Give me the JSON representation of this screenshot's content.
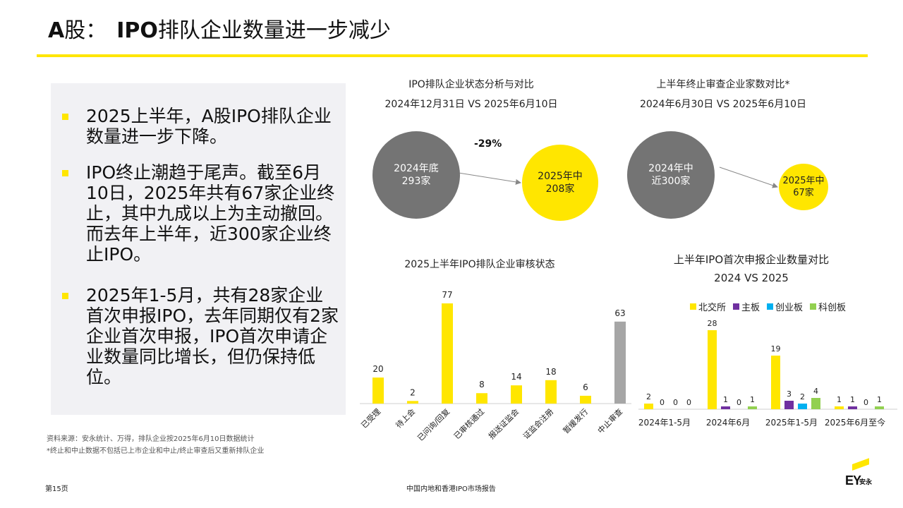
{
  "title": {
    "prefix": "A",
    "mid": "股：",
    "strong": "IPO",
    "rest": "排队企业数量进一步减少"
  },
  "bullets": [
    "2025上半年，A股IPO排队企业数量进一步下降。",
    "IPO终止潮趋于尾声。截至6月10日，2025年共有67家企业终止，其中九成以上为主动撤回。而去年上半年，近300家企业终止IPO。",
    "2025年1-5月，共有28家企业首次申报IPO，去年同期仅有2家企业首次申报，IPO首次申请企业数量同比增长，但仍保持低位。"
  ],
  "colors": {
    "yellow": "#ffe600",
    "gray": "#747474",
    "bar_gray": "#a6a6a6",
    "purple": "#7030a0",
    "blue": "#00b0f0",
    "green": "#92d050"
  },
  "panel1": {
    "title": "IPO排队企业状态分析与对比",
    "subtitle": "2024年12月31日 VS 2025年6月10日",
    "left_line1": "2024年底",
    "left_line2": "293家",
    "right_line1": "2025年中",
    "right_line2": "208家",
    "change": "-29%"
  },
  "panel2": {
    "title": "上半年终止审查企业家数对比*",
    "subtitle": "2024年6月30日 VS 2025年6月10日",
    "left_line1": "2024年中",
    "left_line2": "近300家",
    "right_line1": "2025年中",
    "right_line2": "67家"
  },
  "chart_data": [
    {
      "type": "bar",
      "title": "2025上半年IPO排队企业审核状态",
      "categories": [
        "已受理",
        "待上会",
        "已问询/回复",
        "已审核通过",
        "报送证监会",
        "证监会注册",
        "暂缓发行",
        "中止审查"
      ],
      "values": [
        20,
        2,
        77,
        8,
        14,
        18,
        6,
        63
      ],
      "bar_colors": [
        "yellow",
        "yellow",
        "yellow",
        "yellow",
        "yellow",
        "yellow",
        "yellow",
        "bar_gray"
      ]
    },
    {
      "type": "bar",
      "title": "上半年IPO首次申报企业数量对比",
      "subtitle": "2024 VS 2025",
      "categories": [
        "2024年1-5月",
        "2024年6月",
        "2025年1-5月",
        "2025年6月至今"
      ],
      "series": [
        {
          "name": "北交所",
          "color": "yellow",
          "values": [
            2,
            28,
            19,
            1
          ]
        },
        {
          "name": "主板",
          "color": "purple",
          "values": [
            0,
            1,
            3,
            1
          ]
        },
        {
          "name": "创业板",
          "color": "blue",
          "values": [
            0,
            0,
            2,
            0
          ]
        },
        {
          "name": "科创板",
          "color": "green",
          "values": [
            0,
            1,
            4,
            1
          ]
        }
      ],
      "legend_position": "top"
    }
  ],
  "source": "资料来源：安永统计、万得，排队企业按2025年6月10日数据统计",
  "note": "*终止和中止数据不包括已上市企业和中止/终止审查后又重新排队企业",
  "footer": {
    "page": "第15页",
    "report": "中国内地和香港IPO市场报告"
  },
  "logo": {
    "mark": "EY",
    "text": "安永"
  }
}
